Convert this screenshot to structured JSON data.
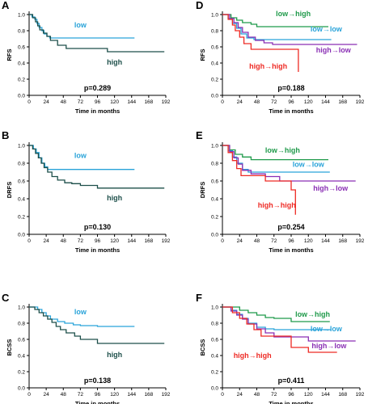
{
  "colors": {
    "low": "#29a3d9",
    "high": "#1d4f4a",
    "low_to_high": "#1f9a4a",
    "low_to_low": "#29a3d9",
    "high_to_low": "#8a2fb4",
    "high_to_high": "#ee2a24",
    "axis": "#000000"
  },
  "chart_data": [
    {
      "type": "line",
      "panel": "A",
      "ylabel": "RFS",
      "xlabel": "Time in months",
      "xticks": [
        "0",
        "24",
        "48",
        "72",
        "96",
        "120",
        "144",
        "168",
        "192"
      ],
      "yticks": [
        "0.0",
        "0.2",
        "0.4",
        "0.6",
        "0.8",
        "1.0"
      ],
      "xlim": [
        0,
        192
      ],
      "ylim": [
        0,
        1.0
      ],
      "pvalue": "p=0.289",
      "series": [
        {
          "name": "low",
          "color_key": "low",
          "x": [
            0,
            4,
            8,
            11,
            14,
            18,
            21,
            25,
            29,
            148
          ],
          "y": [
            1.0,
            0.97,
            0.94,
            0.89,
            0.84,
            0.8,
            0.76,
            0.73,
            0.71,
            0.71
          ]
        },
        {
          "name": "high",
          "color_key": "high",
          "x": [
            0,
            5,
            9,
            12,
            15,
            20,
            25,
            30,
            40,
            52,
            110,
            190
          ],
          "y": [
            1.0,
            0.96,
            0.91,
            0.86,
            0.81,
            0.77,
            0.73,
            0.68,
            0.62,
            0.58,
            0.54,
            0.54
          ]
        }
      ],
      "labels": [
        {
          "text": "low",
          "series": "low",
          "x": 72,
          "y": 0.84
        },
        {
          "text": "high",
          "series": "high",
          "x": 120,
          "y": 0.38
        }
      ]
    },
    {
      "type": "line",
      "panel": "B",
      "ylabel": "DRFS",
      "xlabel": "Time in months",
      "xticks": [
        "0",
        "24",
        "48",
        "72",
        "96",
        "120",
        "144",
        "168",
        "192"
      ],
      "yticks": [
        "0.0",
        "0.2",
        "0.4",
        "0.6",
        "0.8",
        "1.0"
      ],
      "xlim": [
        0,
        192
      ],
      "ylim": [
        0,
        1.0
      ],
      "pvalue": "p=0.130",
      "series": [
        {
          "name": "low",
          "color_key": "low",
          "x": [
            0,
            6,
            10,
            14,
            18,
            22,
            26,
            148
          ],
          "y": [
            1.0,
            0.96,
            0.92,
            0.86,
            0.8,
            0.76,
            0.73,
            0.73
          ]
        },
        {
          "name": "high",
          "color_key": "high",
          "x": [
            0,
            5,
            9,
            13,
            17,
            21,
            26,
            32,
            40,
            50,
            60,
            72,
            96,
            190
          ],
          "y": [
            1.0,
            0.96,
            0.91,
            0.86,
            0.8,
            0.75,
            0.7,
            0.65,
            0.61,
            0.58,
            0.57,
            0.55,
            0.52,
            0.52
          ]
        }
      ],
      "labels": [
        {
          "text": "low",
          "series": "low",
          "x": 72,
          "y": 0.86
        },
        {
          "text": "high",
          "series": "high",
          "x": 120,
          "y": 0.38
        }
      ]
    },
    {
      "type": "line",
      "panel": "C",
      "ylabel": "BCSS",
      "xlabel": "Time in months",
      "xticks": [
        "0",
        "24",
        "48",
        "72",
        "96",
        "120",
        "144",
        "168",
        "192"
      ],
      "yticks": [
        "0.0",
        "0.2",
        "0.4",
        "0.6",
        "0.8",
        "1.0"
      ],
      "xlim": [
        0,
        192
      ],
      "ylim": [
        0,
        1.0
      ],
      "pvalue": "p=0.138",
      "series": [
        {
          "name": "low",
          "color_key": "low",
          "x": [
            0,
            12,
            18,
            24,
            30,
            40,
            50,
            62,
            72,
            96,
            148
          ],
          "y": [
            1.0,
            0.97,
            0.93,
            0.89,
            0.85,
            0.82,
            0.8,
            0.78,
            0.77,
            0.76,
            0.76
          ]
        },
        {
          "name": "high",
          "color_key": "high",
          "x": [
            0,
            8,
            14,
            20,
            26,
            32,
            38,
            44,
            52,
            64,
            72,
            96,
            190
          ],
          "y": [
            1.0,
            0.97,
            0.93,
            0.89,
            0.85,
            0.81,
            0.76,
            0.72,
            0.68,
            0.64,
            0.6,
            0.55,
            0.55
          ]
        }
      ],
      "labels": [
        {
          "text": "low",
          "series": "low",
          "x": 72,
          "y": 0.91
        },
        {
          "text": "high",
          "series": "high",
          "x": 120,
          "y": 0.38
        }
      ]
    },
    {
      "type": "line",
      "panel": "D",
      "ylabel": "RFS",
      "xlabel": "Time in months",
      "xticks": [
        "0",
        "24",
        "48",
        "72",
        "96",
        "120",
        "144",
        "168",
        "192"
      ],
      "yticks": [
        "0.0",
        "0.2",
        "0.4",
        "0.6",
        "0.8",
        "1.0"
      ],
      "xlim": [
        0,
        192
      ],
      "ylim": [
        0,
        1.0
      ],
      "pvalue": "p=0.188",
      "series": [
        {
          "name": "low→high",
          "color_key": "low_to_high",
          "x": [
            0,
            12,
            20,
            28,
            40,
            48,
            148
          ],
          "y": [
            1.0,
            0.96,
            0.93,
            0.9,
            0.88,
            0.85,
            0.85
          ]
        },
        {
          "name": "low→low",
          "color_key": "low_to_low",
          "x": [
            0,
            8,
            14,
            20,
            26,
            34,
            44,
            152
          ],
          "y": [
            1.0,
            0.95,
            0.89,
            0.83,
            0.76,
            0.71,
            0.69,
            0.69
          ]
        },
        {
          "name": "high→low",
          "color_key": "high_to_low",
          "x": [
            0,
            10,
            16,
            22,
            28,
            36,
            46,
            58,
            70,
            188
          ],
          "y": [
            1.0,
            0.95,
            0.9,
            0.84,
            0.78,
            0.72,
            0.68,
            0.65,
            0.63,
            0.63
          ]
        },
        {
          "name": "high→high",
          "color_key": "high_to_high",
          "x": [
            0,
            8,
            14,
            18,
            24,
            30,
            40,
            96,
            106
          ],
          "y": [
            1.0,
            0.94,
            0.87,
            0.8,
            0.72,
            0.64,
            0.57,
            0.57,
            0.29
          ]
        }
      ],
      "labels": [
        {
          "text": "low→high",
          "series": "low_to_high",
          "x": 99,
          "y": 0.98
        },
        {
          "text": "low→low",
          "series": "low_to_low",
          "x": 145,
          "y": 0.79
        },
        {
          "text": "high→low",
          "series": "high_to_low",
          "x": 155,
          "y": 0.53
        },
        {
          "text": "high→high",
          "series": "high_to_high",
          "x": 64,
          "y": 0.33
        }
      ]
    },
    {
      "type": "line",
      "panel": "E",
      "ylabel": "DRFS",
      "xlabel": "Time in months",
      "xticks": [
        "0",
        "24",
        "48",
        "72",
        "96",
        "120",
        "144",
        "168",
        "192"
      ],
      "yticks": [
        "0.0",
        "0.2",
        "0.4",
        "0.6",
        "0.8",
        "1.0"
      ],
      "xlim": [
        0,
        192
      ],
      "ylim": [
        0,
        1.0
      ],
      "pvalue": "p=0.254",
      "series": [
        {
          "name": "low→high",
          "color_key": "low_to_high",
          "x": [
            0,
            10,
            18,
            28,
            40,
            148
          ],
          "y": [
            1.0,
            0.95,
            0.9,
            0.87,
            0.84,
            0.84
          ]
        },
        {
          "name": "low→low",
          "color_key": "low_to_low",
          "x": [
            0,
            8,
            14,
            20,
            28,
            36,
            150
          ],
          "y": [
            1.0,
            0.94,
            0.87,
            0.8,
            0.73,
            0.7,
            0.7
          ]
        },
        {
          "name": "high→low",
          "color_key": "high_to_low",
          "x": [
            0,
            10,
            16,
            22,
            28,
            40,
            60,
            80,
            186
          ],
          "y": [
            1.0,
            0.93,
            0.86,
            0.79,
            0.72,
            0.68,
            0.65,
            0.6,
            0.6
          ]
        },
        {
          "name": "high→high",
          "color_key": "high_to_high",
          "x": [
            0,
            8,
            14,
            20,
            26,
            60,
            96,
            102
          ],
          "y": [
            1.0,
            0.92,
            0.83,
            0.74,
            0.66,
            0.6,
            0.5,
            0.22
          ]
        }
      ],
      "labels": [
        {
          "text": "low→high",
          "series": "low_to_high",
          "x": 84,
          "y": 0.92
        },
        {
          "text": "low→low",
          "series": "low_to_low",
          "x": 120,
          "y": 0.76
        },
        {
          "text": "high→low",
          "series": "high_to_low",
          "x": 151,
          "y": 0.49
        },
        {
          "text": "high→high",
          "series": "high_to_high",
          "x": 76,
          "y": 0.3
        }
      ]
    },
    {
      "type": "line",
      "panel": "F",
      "ylabel": "BCSS",
      "xlabel": "Time in months",
      "xticks": [
        "0",
        "24",
        "48",
        "72",
        "96",
        "120",
        "144",
        "168",
        "192"
      ],
      "yticks": [
        "0.0",
        "0.2",
        "0.4",
        "0.6",
        "0.8",
        "1.0"
      ],
      "xlim": [
        0,
        192
      ],
      "ylim": [
        0,
        1.0
      ],
      "pvalue": "p=0.411",
      "series": [
        {
          "name": "low→high",
          "color_key": "low_to_high",
          "x": [
            0,
            24,
            36,
            48,
            60,
            72,
            96,
            150
          ],
          "y": [
            1.0,
            0.96,
            0.93,
            0.9,
            0.87,
            0.86,
            0.82,
            0.82
          ]
        },
        {
          "name": "low→low",
          "color_key": "low_to_low",
          "x": [
            0,
            12,
            20,
            28,
            36,
            48,
            60,
            72,
            152
          ],
          "y": [
            1.0,
            0.96,
            0.91,
            0.86,
            0.8,
            0.75,
            0.73,
            0.72,
            0.72
          ]
        },
        {
          "name": "high→low",
          "color_key": "high_to_low",
          "x": [
            0,
            12,
            20,
            28,
            36,
            48,
            60,
            72,
            120,
            186
          ],
          "y": [
            1.0,
            0.95,
            0.9,
            0.85,
            0.79,
            0.73,
            0.68,
            0.63,
            0.58,
            0.58
          ]
        },
        {
          "name": "high→high",
          "color_key": "high_to_high",
          "x": [
            0,
            14,
            24,
            34,
            44,
            54,
            96,
            120,
            160
          ],
          "y": [
            1.0,
            0.93,
            0.86,
            0.79,
            0.72,
            0.64,
            0.5,
            0.44,
            0.44
          ]
        }
      ],
      "labels": [
        {
          "text": "low→high",
          "series": "low_to_high",
          "x": 126,
          "y": 0.88
        },
        {
          "text": "low→low",
          "series": "low_to_low",
          "x": 145,
          "y": 0.7
        },
        {
          "text": "high→low",
          "series": "high_to_low",
          "x": 149,
          "y": 0.49
        },
        {
          "text": "high→high",
          "series": "high_to_high",
          "x": 42,
          "y": 0.37
        }
      ]
    }
  ]
}
